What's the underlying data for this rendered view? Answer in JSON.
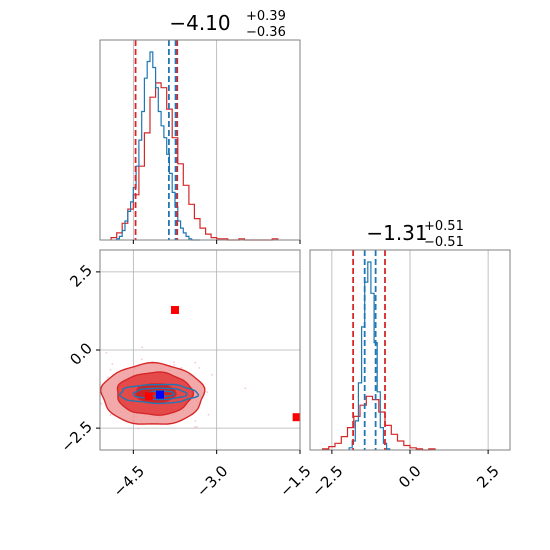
{
  "colors": {
    "red": "#d62728",
    "blue": "#1f77b4",
    "red_fill_dark": "#e23a3a",
    "red_fill_light": "#f09a9a",
    "marker_red": "#ff0000",
    "marker_blue": "#0000ff",
    "grid": "#b0b0b0"
  },
  "chart_data": {
    "type": "corner",
    "parameters": [
      {
        "title_main": "−4.10",
        "title_sup": "+0.39",
        "title_sub": "−0.36",
        "range": [
          -5.1,
          -1.5
        ],
        "ticks": [
          -4.5,
          -3.0,
          -1.5
        ],
        "tick_labels": [
          "−4.5",
          "−3.0",
          "−1.5"
        ],
        "quantiles_red": [
          -4.46,
          -3.71
        ],
        "quantiles_blue": [
          -3.86,
          -3.74
        ],
        "histogram_blue": {
          "bins": [
            -4.8,
            -4.75,
            -4.7,
            -4.65,
            -4.6,
            -4.55,
            -4.5,
            -4.45,
            -4.4,
            -4.35,
            -4.3,
            -4.25,
            -4.2,
            -4.15,
            -4.1,
            -4.05,
            -4.0,
            -3.95,
            -3.9,
            -3.85,
            -3.8,
            -3.75,
            -3.7,
            -3.65,
            -3.6,
            -3.55,
            -3.5,
            -3.45,
            -3.4,
            -3.35
          ],
          "counts": [
            1,
            3,
            8,
            16,
            24,
            32,
            44,
            62,
            84,
            108,
            136,
            150,
            158,
            145,
            128,
            108,
            96,
            86,
            72,
            56,
            40,
            28,
            16,
            10,
            6,
            3,
            1,
            0,
            0,
            0
          ]
        },
        "histogram_red": {
          "bins": [
            -4.9,
            -4.8,
            -4.7,
            -4.6,
            -4.5,
            -4.4,
            -4.3,
            -4.2,
            -4.1,
            -4.0,
            -3.9,
            -3.8,
            -3.7,
            -3.6,
            -3.5,
            -3.4,
            -3.3,
            -3.2,
            -3.1,
            -3.0,
            -2.9,
            -2.8,
            -2.7,
            -2.6,
            -2.5,
            -2.4,
            -2.3,
            -2.2,
            -2.1,
            -2.0
          ],
          "counts": [
            2,
            6,
            14,
            26,
            38,
            62,
            90,
            120,
            132,
            128,
            110,
            86,
            64,
            46,
            30,
            18,
            10,
            5,
            2,
            1,
            1,
            0,
            0,
            1,
            0,
            0,
            0,
            0,
            0,
            1
          ]
        }
      },
      {
        "title_main": "−1.31",
        "title_sup": "+0.51",
        "title_sub": "−0.51",
        "range": [
          -3.2,
          3.2
        ],
        "ticks": [
          -2.5,
          0.0,
          2.5
        ],
        "tick_labels": [
          "−2.5",
          "0.0",
          "2.5"
        ],
        "quantiles_red": [
          -1.82,
          -0.8
        ],
        "quantiles_blue": [
          -1.45,
          -1.1
        ],
        "histogram_blue": {
          "bins": [
            -1.95,
            -1.85,
            -1.75,
            -1.65,
            -1.55,
            -1.45,
            -1.35,
            -1.25,
            -1.15,
            -1.05,
            -0.95,
            -0.85,
            -0.75
          ],
          "counts": [
            2,
            8,
            26,
            60,
            110,
            150,
            168,
            140,
            96,
            52,
            20,
            6,
            1
          ]
        },
        "histogram_red": {
          "bins": [
            -2.8,
            -2.6,
            -2.4,
            -2.2,
            -2.0,
            -1.8,
            -1.6,
            -1.4,
            -1.2,
            -1.0,
            -0.8,
            -0.6,
            -0.4,
            -0.2,
            0.0,
            0.2,
            0.4,
            0.6
          ],
          "counts": [
            1,
            3,
            6,
            12,
            20,
            30,
            40,
            48,
            45,
            34,
            22,
            14,
            8,
            4,
            2,
            1,
            0,
            1
          ]
        }
      }
    ],
    "joint": {
      "xrange": [
        -5.1,
        -1.5
      ],
      "yrange": [
        -3.2,
        3.2
      ],
      "red_contours": [
        {
          "cx": -4.15,
          "cy": -1.42,
          "rx": 0.92,
          "ry": 0.98
        },
        {
          "cx": -4.12,
          "cy": -1.4,
          "rx": 0.68,
          "ry": 0.68
        },
        {
          "cx": -4.1,
          "cy": -1.38,
          "rx": 0.36,
          "ry": 0.3
        }
      ],
      "blue_contours": [
        {
          "cx": -4.05,
          "cy": -1.4,
          "rx": 0.7,
          "ry": 0.3
        },
        {
          "cx": -4.02,
          "cy": -1.4,
          "rx": 0.48,
          "ry": 0.18
        },
        {
          "cx": -4.0,
          "cy": -1.4,
          "rx": 0.24,
          "ry": 0.09
        }
      ],
      "markers_red": [
        {
          "x": -3.75,
          "y": 1.28
        },
        {
          "x": -1.56,
          "y": -2.15
        },
        {
          "x": -4.22,
          "y": -1.48
        }
      ],
      "markers_blue": [
        {
          "x": -4.02,
          "y": -1.43
        }
      ]
    }
  }
}
